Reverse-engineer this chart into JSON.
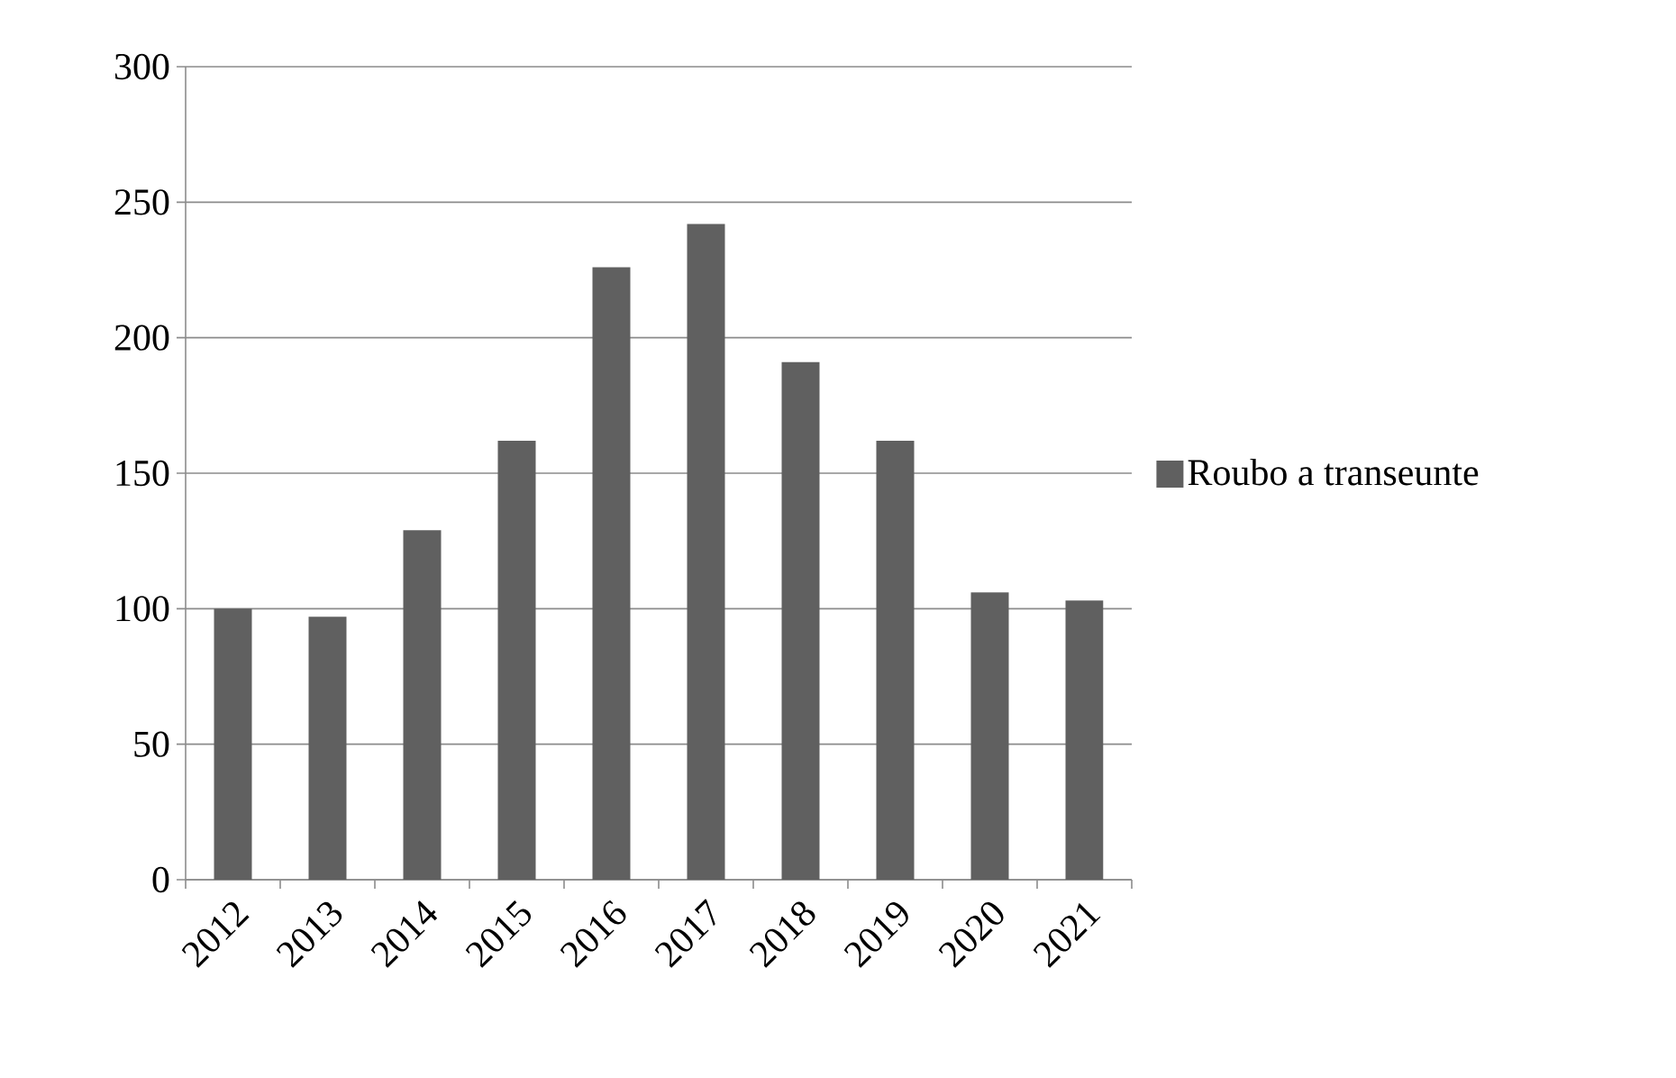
{
  "chart_data": {
    "type": "bar",
    "categories": [
      "2012",
      "2013",
      "2014",
      "2015",
      "2016",
      "2017",
      "2018",
      "2019",
      "2020",
      "2021"
    ],
    "series": [
      {
        "name": "Roubo a transeunte",
        "color": "#606060",
        "values": [
          100,
          97,
          129,
          162,
          226,
          242,
          191,
          162,
          106,
          103
        ]
      }
    ],
    "ylim": [
      0,
      300
    ],
    "yticks": [
      0,
      50,
      100,
      150,
      200,
      250,
      300
    ],
    "grid": "y",
    "legend": "right"
  }
}
